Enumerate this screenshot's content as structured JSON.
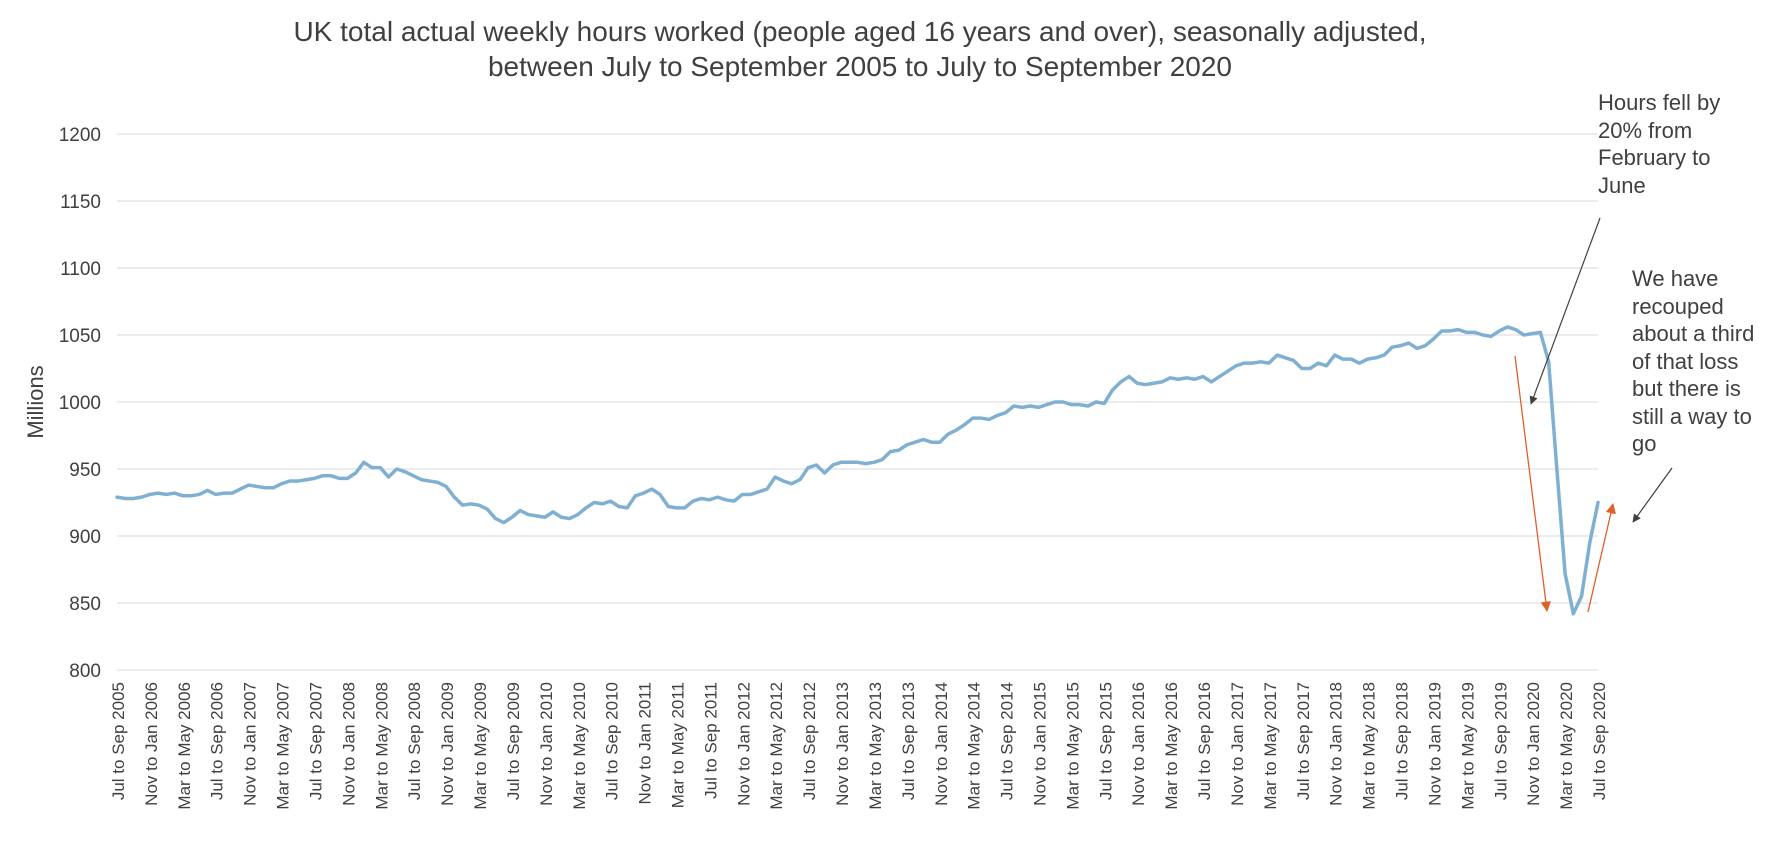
{
  "chart_data": {
    "type": "line",
    "title_lines": [
      "UK total actual weekly hours worked (people aged 16 years and over), seasonally adjusted,",
      "between July to September 2005 to July to September 2020"
    ],
    "ylabel": "Millions",
    "xlabel": "",
    "ylim": [
      800,
      1200
    ],
    "yticks": [
      800,
      850,
      900,
      950,
      1000,
      1050,
      1100,
      1150,
      1200
    ],
    "grid": true,
    "line_color": "#7fb0d2",
    "x_tick_labels": [
      "Jul to Sep 2005",
      "Nov to Jan 2006",
      "Mar to May 2006",
      "Jul to Sep 2006",
      "Nov to Jan 2007",
      "Mar to May 2007",
      "Jul to Sep 2007",
      "Nov to Jan 2008",
      "Mar to May 2008",
      "Jul to Sep 2008",
      "Nov to Jan 2009",
      "Mar to May 2009",
      "Jul to Sep 2009",
      "Nov to Jan 2010",
      "Mar to May 2010",
      "Jul to Sep 2010",
      "Nov to Jan 2011",
      "Mar to May 2011",
      "Jul to Sep 2011",
      "Nov to Jan 2012",
      "Mar to May 2012",
      "Jul to Sep 2012",
      "Nov to Jan 2013",
      "Mar to May 2013",
      "Jul to Sep 2013",
      "Nov to Jan 2014",
      "Mar to May 2014",
      "Jul to Sep 2014",
      "Nov to Jan 2015",
      "Mar to May 2015",
      "Jul to Sep 2015",
      "Nov to Jan 2016",
      "Mar to May 2016",
      "Jul to Sep 2016",
      "Nov to Jan 2017",
      "Mar to May 2017",
      "Jul to Sep 2017",
      "Nov to Jan 2018",
      "Mar to May 2018",
      "Jul to Sep 2018",
      "Nov to Jan 2019",
      "Mar to May 2019",
      "Jul to Sep 2019",
      "Nov to Jan 2020",
      "Mar to May 2020",
      "Jul to Sep 2020"
    ],
    "series": [
      {
        "values": [
          929,
          928,
          928,
          929,
          931,
          932,
          931,
          932,
          930,
          930,
          931,
          934,
          931,
          932,
          932,
          935,
          938,
          937,
          936,
          936,
          939,
          941,
          941,
          942,
          943,
          945,
          945,
          943,
          943,
          947,
          955,
          951,
          951,
          944,
          950,
          948,
          945,
          942,
          941,
          940,
          937,
          929,
          923,
          924,
          923,
          920,
          913,
          910,
          914,
          919,
          916,
          915,
          914,
          918,
          914,
          913,
          916,
          921,
          925,
          924,
          926,
          922,
          921,
          930,
          932,
          935,
          931,
          922,
          921,
          921,
          926,
          928,
          927,
          929,
          927,
          926,
          931,
          931,
          933,
          935,
          944,
          941,
          939,
          942,
          951,
          953,
          947,
          953,
          955,
          955,
          955,
          954,
          955,
          957,
          963,
          964,
          968,
          970,
          972,
          970,
          970,
          976,
          979,
          983,
          988,
          988,
          987,
          990,
          992,
          997,
          996,
          997,
          996,
          998,
          1000,
          1000,
          998,
          998,
          997,
          1000,
          999,
          1009,
          1015,
          1019,
          1014,
          1013,
          1014,
          1015,
          1018,
          1017,
          1018,
          1017,
          1019,
          1015,
          1019,
          1023,
          1027,
          1029,
          1029,
          1030,
          1029,
          1035,
          1033,
          1031,
          1025,
          1025,
          1029,
          1027,
          1035,
          1032,
          1032,
          1029,
          1032,
          1033,
          1035,
          1041,
          1042,
          1044,
          1040,
          1042,
          1047,
          1053,
          1053,
          1054,
          1052,
          1052,
          1050,
          1049,
          1053,
          1056,
          1054,
          1050,
          1051,
          1052,
          1030,
          950,
          872,
          842,
          855,
          895,
          925
        ]
      }
    ],
    "annotations": [
      {
        "id": "fell",
        "text": "Hours fell by 20% from February to June",
        "lines": [
          "Hours fell by",
          "20% from",
          "February to",
          "June"
        ],
        "arrow_color": "#404040"
      },
      {
        "id": "recouped",
        "text": "We have recouped about a third of that loss but there is still a way to go",
        "lines": [
          "We have",
          "recouped",
          "about a third",
          "of that loss",
          "but there is",
          "still a way to",
          "go"
        ],
        "arrow_color": "#404040"
      }
    ],
    "trend_arrows_color": "#e0602a"
  }
}
